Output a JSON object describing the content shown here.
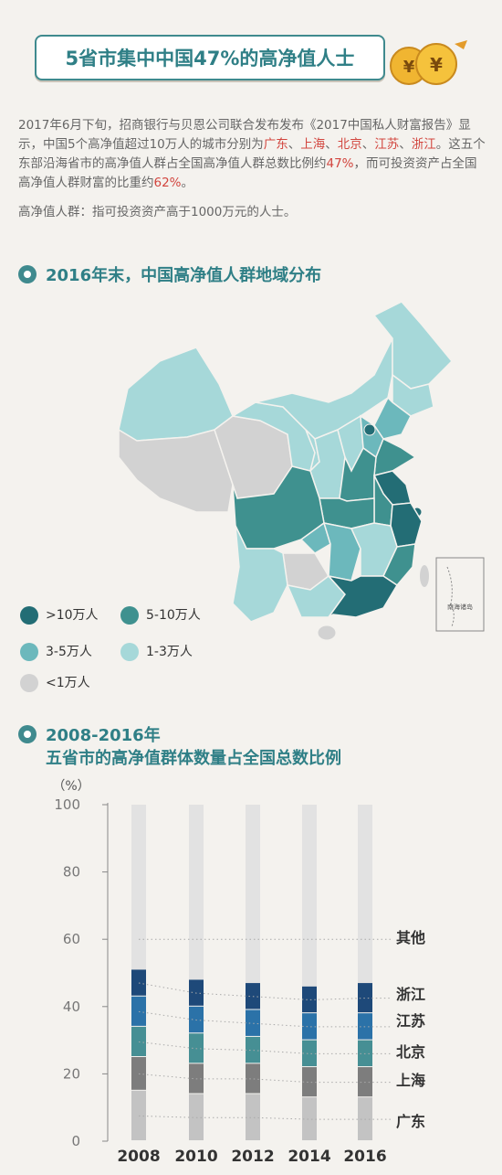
{
  "title": "5省市集中中国47%的高净值人士",
  "intro": {
    "p1": "2017年6月下旬，招商银行与贝恩公司联合发布发布《2017中国私人财富报告》显示，中国5个高净值超过10万人的城市分别为",
    "c1": "广东",
    "s1": "、",
    "c2": "上海",
    "s2": "、",
    "c3": "北京",
    "s3": "、",
    "c4": "江苏",
    "s4": "、",
    "c5": "浙江",
    "p2": "。这五个东部沿海省市的高净值人群占全国高净值人群总数比例约",
    "pct1": "47%",
    "p3": "，而可投资资产占全国高净值人群财富的比重约",
    "pct2": "62%",
    "p4": "。"
  },
  "definition": "高净值人群：指可投资资产高于1000万元的人士。",
  "map_section": {
    "title": "2016年末，中国高净值人群地域分布",
    "inset_label": "南海诸岛",
    "legend": [
      {
        "label": ">10万人",
        "color": "#236d75"
      },
      {
        "label": "5-10万人",
        "color": "#3f918f"
      },
      {
        "label": "3-5万人",
        "color": "#6cb8bc"
      },
      {
        "label": "1-3万人",
        "color": "#a6d8d9"
      },
      {
        "label": "<1万人",
        "color": "#d2d2d2"
      }
    ]
  },
  "chart_section": {
    "title_line1": "2008-2016年",
    "title_line2": "五省市的高净值群体数量占全国总数比例"
  },
  "chart_data": {
    "type": "bar",
    "stacked": true,
    "ylabel": "（%）",
    "ylim": [
      0,
      100
    ],
    "yticks": [
      0,
      20,
      40,
      60,
      80,
      100
    ],
    "categories": [
      "2008",
      "2010",
      "2012",
      "2014",
      "2016"
    ],
    "series": [
      {
        "name": "广东",
        "color": "#c3c3c3",
        "values": [
          15,
          14,
          14,
          13,
          13
        ]
      },
      {
        "name": "上海",
        "color": "#7d7d7d",
        "values": [
          10,
          9,
          9,
          9,
          9
        ]
      },
      {
        "name": "北京",
        "color": "#468f94",
        "values": [
          9,
          9,
          8,
          8,
          8
        ]
      },
      {
        "name": "江苏",
        "color": "#2b72a8",
        "values": [
          9,
          8,
          8,
          8,
          8
        ]
      },
      {
        "name": "浙江",
        "color": "#1e4979",
        "values": [
          8,
          8,
          8,
          8,
          9
        ]
      },
      {
        "name": "其他",
        "color": "#e2e2e2",
        "values": [
          49,
          52,
          53,
          54,
          53
        ]
      }
    ]
  }
}
